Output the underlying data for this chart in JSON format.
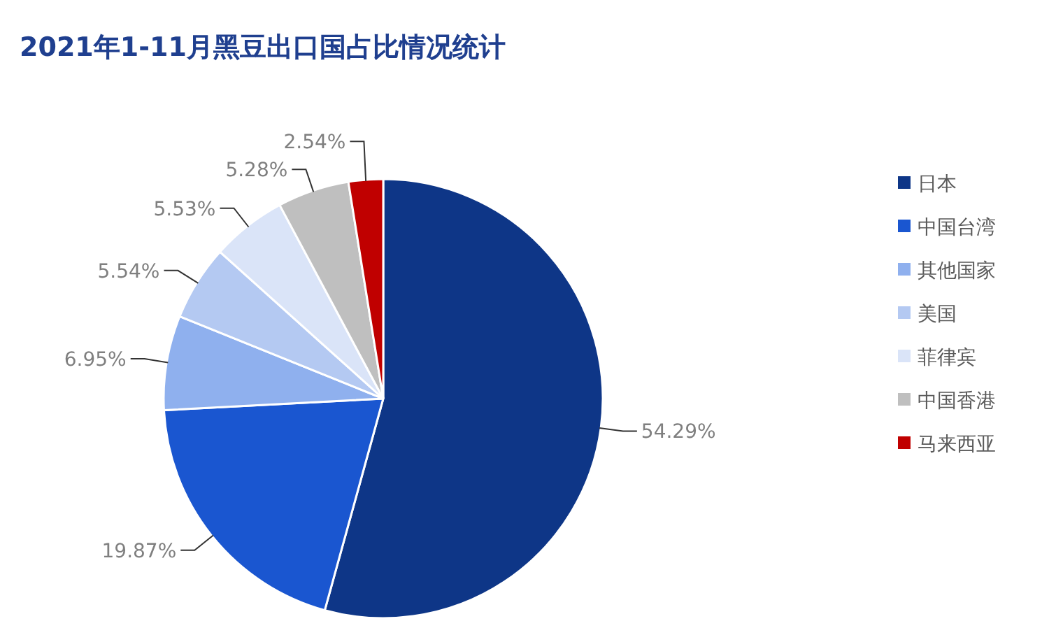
{
  "chart_data": {
    "type": "pie",
    "title": "2021年1-11月黑豆出口国占比情况统计",
    "categories": [
      "日本",
      "中国台湾",
      "其他国家",
      "美国",
      "菲律宾",
      "中国香港",
      "马来西亚"
    ],
    "values": [
      54.29,
      19.87,
      6.95,
      5.54,
      5.53,
      5.28,
      2.54
    ],
    "colors": [
      "#0e3687",
      "#1a56d0",
      "#8fb0ee",
      "#b4c9f2",
      "#dae4f8",
      "#bfbfbf",
      "#c00000"
    ],
    "value_labels": [
      "54.29%",
      "19.87%",
      "6.95%",
      "5.54%",
      "5.53%",
      "5.28%",
      "2.54%"
    ],
    "legend": "right"
  }
}
